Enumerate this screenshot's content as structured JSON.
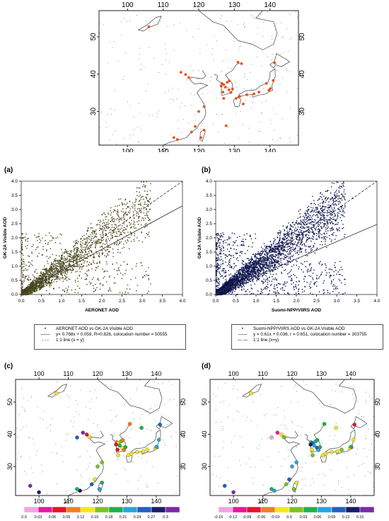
{
  "top_map": {
    "lon_ticks": [
      "100",
      "110",
      "120",
      "130",
      "140"
    ],
    "lat_ticks": [
      "30",
      "40",
      "50"
    ],
    "marker_color": "#e8501c"
  },
  "panel_a": {
    "label": "(a)",
    "legend": {
      "points": "AERONET AOD vs GK-2A Visible AOD",
      "fit": "y= 0.768x + 0.059, R=0.826, colocation number = 50555",
      "oneone": "1:1 line (x = y)"
    }
  },
  "panel_b": {
    "label": "(b)",
    "legend": {
      "points": "Suomi-NPP/VIIRS AOD vs GK-2A Visible AOD",
      "fit": "y = 0.61x + 0.036, r = 0.651, colocation number = 303755",
      "oneone": "1:1 line (x=y)"
    }
  },
  "panel_c": {
    "label": "(c)",
    "colorbar_ticks": [
      "0.0",
      "0.03",
      "0.06",
      "0.09",
      "0.12",
      "0.15",
      "0.18",
      "0.21",
      "0.24",
      "0.27",
      "0.3"
    ],
    "colorbar_colors": [
      "#f4a3e0",
      "#e8189a",
      "#e8122c",
      "#f07f1c",
      "#f5e619",
      "#7dc21f",
      "#1fb04c",
      "#22a7e0",
      "#1f5fc8",
      "#1a1a6b",
      "#7a2aa8"
    ]
  },
  "panel_d": {
    "label": "(d)",
    "colorbar_ticks": [
      "-0.15",
      "-0.12",
      "-0.09",
      "-0.06",
      "-0.03",
      "0.0",
      "0.03",
      "0.06",
      "0.09",
      "0.12",
      "0.15"
    ],
    "colorbar_colors": [
      "#f4a3e0",
      "#e8189a",
      "#e8122c",
      "#f07f1c",
      "#f5e619",
      "#7dc21f",
      "#1fb04c",
      "#22a7e0",
      "#1f5fc8",
      "#1a1a6b",
      "#7a2aa8"
    ]
  },
  "chart_data": [
    {
      "type": "scatter",
      "panel": "a",
      "xlabel": "AERONET AOD",
      "ylabel": "GK-2A Visible AOD",
      "xlim": [
        0,
        4.0
      ],
      "ylim": [
        0,
        4.0
      ],
      "ticks": [
        "0.0",
        "0.5",
        "1.0",
        "1.5",
        "2.0",
        "2.5",
        "3.0",
        "3.5",
        "4.0"
      ],
      "point_color": "#4a4a1e",
      "fit": {
        "slope": 0.768,
        "intercept": 0.059,
        "r": 0.826,
        "n": 50555
      },
      "points_sample": [
        [
          0.1,
          0.12
        ],
        [
          0.2,
          0.25
        ],
        [
          0.3,
          0.3
        ],
        [
          0.5,
          0.45
        ],
        [
          0.7,
          0.65
        ],
        [
          1.0,
          0.9
        ],
        [
          1.3,
          1.2
        ],
        [
          1.6,
          1.5
        ],
        [
          2.0,
          1.9
        ],
        [
          2.4,
          2.3
        ],
        [
          2.8,
          2.7
        ],
        [
          3.1,
          3.0
        ]
      ]
    },
    {
      "type": "scatter",
      "panel": "b",
      "xlabel": "Suomi-NPP/VIIRS AOD",
      "ylabel": "GK-2A Visible AOD",
      "xlim": [
        0,
        4.0
      ],
      "ylim": [
        0,
        4.0
      ],
      "ticks": [
        "0.0",
        "0.5",
        "1.0",
        "1.5",
        "2.0",
        "2.5",
        "3.0",
        "3.5",
        "4.0"
      ],
      "point_color": "#0d1450",
      "fit": {
        "slope": 0.61,
        "intercept": 0.036,
        "r": 0.651,
        "n": 303755
      },
      "points_sample": [
        [
          0.1,
          0.1
        ],
        [
          0.3,
          0.3
        ],
        [
          0.5,
          0.55
        ],
        [
          0.8,
          0.8
        ],
        [
          1.1,
          1.1
        ],
        [
          1.5,
          1.5
        ],
        [
          1.9,
          1.8
        ],
        [
          2.3,
          2.2
        ],
        [
          2.7,
          2.6
        ],
        [
          3.1,
          3.1
        ],
        [
          3.4,
          3.4
        ]
      ]
    }
  ]
}
